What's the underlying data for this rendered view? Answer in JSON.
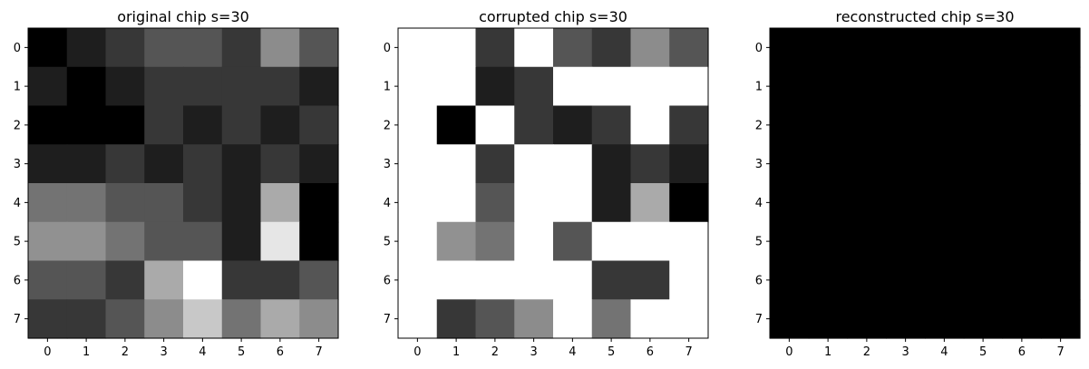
{
  "chart_data": [
    {
      "type": "heatmap",
      "title": "original chip s=30",
      "x": [
        0,
        1,
        2,
        3,
        4,
        5,
        6,
        7
      ],
      "y": [
        0,
        1,
        2,
        3,
        4,
        5,
        6,
        7
      ],
      "colormap": "gray",
      "vmin": 0,
      "vmax": 255,
      "values": [
        [
          0,
          30,
          55,
          85,
          85,
          55,
          140,
          85
        ],
        [
          30,
          0,
          30,
          55,
          55,
          55,
          55,
          30
        ],
        [
          0,
          0,
          0,
          55,
          30,
          55,
          30,
          55
        ],
        [
          30,
          30,
          55,
          30,
          55,
          30,
          55,
          30
        ],
        [
          115,
          115,
          85,
          85,
          55,
          30,
          170,
          0
        ],
        [
          145,
          145,
          115,
          85,
          85,
          30,
          230,
          0
        ],
        [
          85,
          85,
          55,
          170,
          255,
          55,
          55,
          85
        ],
        [
          55,
          55,
          85,
          140,
          200,
          115,
          170,
          140
        ]
      ]
    },
    {
      "type": "heatmap",
      "title": "corrupted chip s=30",
      "x": [
        0,
        1,
        2,
        3,
        4,
        5,
        6,
        7
      ],
      "y": [
        0,
        1,
        2,
        3,
        4,
        5,
        6,
        7
      ],
      "colormap": "gray",
      "vmin": 0,
      "vmax": 255,
      "values": [
        [
          255,
          255,
          55,
          255,
          85,
          55,
          140,
          85
        ],
        [
          255,
          255,
          30,
          55,
          255,
          255,
          255,
          255
        ],
        [
          255,
          0,
          255,
          55,
          30,
          55,
          255,
          55
        ],
        [
          255,
          255,
          55,
          255,
          255,
          30,
          55,
          30
        ],
        [
          255,
          255,
          85,
          255,
          255,
          30,
          170,
          0
        ],
        [
          255,
          145,
          115,
          255,
          85,
          255,
          255,
          255
        ],
        [
          255,
          255,
          255,
          255,
          255,
          55,
          55,
          255
        ],
        [
          255,
          55,
          85,
          140,
          255,
          115,
          255,
          255
        ]
      ]
    },
    {
      "type": "heatmap",
      "title": "reconstructed chip s=30",
      "x": [
        0,
        1,
        2,
        3,
        4,
        5,
        6,
        7
      ],
      "y": [
        0,
        1,
        2,
        3,
        4,
        5,
        6,
        7
      ],
      "colormap": "gray",
      "vmin": 0,
      "vmax": 255,
      "values": [
        [
          0,
          0,
          0,
          0,
          0,
          0,
          0,
          0
        ],
        [
          0,
          0,
          0,
          0,
          0,
          0,
          0,
          0
        ],
        [
          0,
          0,
          0,
          0,
          0,
          0,
          0,
          0
        ],
        [
          0,
          0,
          0,
          0,
          0,
          0,
          0,
          0
        ],
        [
          0,
          0,
          0,
          0,
          0,
          0,
          0,
          0
        ],
        [
          0,
          0,
          0,
          0,
          0,
          0,
          0,
          0
        ],
        [
          0,
          0,
          0,
          0,
          0,
          0,
          0,
          0
        ],
        [
          0,
          0,
          0,
          0,
          0,
          0,
          0,
          0
        ]
      ]
    }
  ]
}
